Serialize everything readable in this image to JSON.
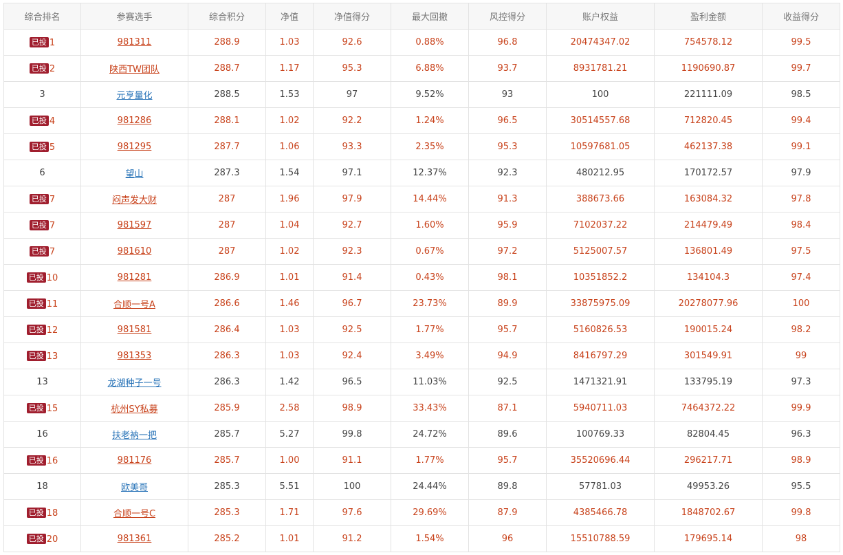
{
  "colors": {
    "invested": "#c8421b",
    "plain_text": "#444444",
    "plain_link": "#2a74b8",
    "badge_bg": "#a01e2e",
    "header_bg": "#f7f7f7"
  },
  "headers": [
    "综合排名",
    "参赛选手",
    "综合积分",
    "净值",
    "净值得分",
    "最大回撤",
    "风控得分",
    "账户权益",
    "盈利金额",
    "收益得分"
  ],
  "badge_text": "已投",
  "rows": [
    {
      "invested": true,
      "rank": "1",
      "name": "981311",
      "score": "288.9",
      "nav": "1.03",
      "nav_score": "92.6",
      "drawdown": "0.88%",
      "risk": "96.8",
      "equity": "20474347.02",
      "profit": "754578.12",
      "return": "99.5"
    },
    {
      "invested": true,
      "rank": "2",
      "name": "陕西TW团队",
      "score": "288.7",
      "nav": "1.17",
      "nav_score": "95.3",
      "drawdown": "6.88%",
      "risk": "93.7",
      "equity": "8931781.21",
      "profit": "1190690.87",
      "return": "99.7"
    },
    {
      "invested": false,
      "rank": "3",
      "name": "元亨量化",
      "score": "288.5",
      "nav": "1.53",
      "nav_score": "97",
      "drawdown": "9.52%",
      "risk": "93",
      "equity": "100",
      "profit": "221111.09",
      "return": "98.5"
    },
    {
      "invested": true,
      "rank": "4",
      "name": "981286",
      "score": "288.1",
      "nav": "1.02",
      "nav_score": "92.2",
      "drawdown": "1.24%",
      "risk": "96.5",
      "equity": "30514557.68",
      "profit": "712820.45",
      "return": "99.4"
    },
    {
      "invested": true,
      "rank": "5",
      "name": "981295",
      "score": "287.7",
      "nav": "1.06",
      "nav_score": "93.3",
      "drawdown": "2.35%",
      "risk": "95.3",
      "equity": "10597681.05",
      "profit": "462137.38",
      "return": "99.1"
    },
    {
      "invested": false,
      "rank": "6",
      "name": "望山",
      "score": "287.3",
      "nav": "1.54",
      "nav_score": "97.1",
      "drawdown": "12.37%",
      "risk": "92.3",
      "equity": "480212.95",
      "profit": "170172.57",
      "return": "97.9"
    },
    {
      "invested": true,
      "rank": "7",
      "name": "闷声发大财",
      "score": "287",
      "nav": "1.96",
      "nav_score": "97.9",
      "drawdown": "14.44%",
      "risk": "91.3",
      "equity": "388673.66",
      "profit": "163084.32",
      "return": "97.8"
    },
    {
      "invested": true,
      "rank": "7",
      "name": "981597",
      "score": "287",
      "nav": "1.04",
      "nav_score": "92.7",
      "drawdown": "1.60%",
      "risk": "95.9",
      "equity": "7102037.22",
      "profit": "214479.49",
      "return": "98.4"
    },
    {
      "invested": true,
      "rank": "7",
      "name": "981610",
      "score": "287",
      "nav": "1.02",
      "nav_score": "92.3",
      "drawdown": "0.67%",
      "risk": "97.2",
      "equity": "5125007.57",
      "profit": "136801.49",
      "return": "97.5"
    },
    {
      "invested": true,
      "rank": "10",
      "name": "981281",
      "score": "286.9",
      "nav": "1.01",
      "nav_score": "91.4",
      "drawdown": "0.43%",
      "risk": "98.1",
      "equity": "10351852.2",
      "profit": "134104.3",
      "return": "97.4"
    },
    {
      "invested": true,
      "rank": "11",
      "name": "合顺一号A",
      "score": "286.6",
      "nav": "1.46",
      "nav_score": "96.7",
      "drawdown": "23.73%",
      "risk": "89.9",
      "equity": "33875975.09",
      "profit": "20278077.96",
      "return": "100"
    },
    {
      "invested": true,
      "rank": "12",
      "name": "981581",
      "score": "286.4",
      "nav": "1.03",
      "nav_score": "92.5",
      "drawdown": "1.77%",
      "risk": "95.7",
      "equity": "5160826.53",
      "profit": "190015.24",
      "return": "98.2"
    },
    {
      "invested": true,
      "rank": "13",
      "name": "981353",
      "score": "286.3",
      "nav": "1.03",
      "nav_score": "92.4",
      "drawdown": "3.49%",
      "risk": "94.9",
      "equity": "8416797.29",
      "profit": "301549.91",
      "return": "99"
    },
    {
      "invested": false,
      "rank": "13",
      "name": "龙湖种子一号",
      "score": "286.3",
      "nav": "1.42",
      "nav_score": "96.5",
      "drawdown": "11.03%",
      "risk": "92.5",
      "equity": "1471321.91",
      "profit": "133795.19",
      "return": "97.3"
    },
    {
      "invested": true,
      "rank": "15",
      "name": "杭州SY私募",
      "score": "285.9",
      "nav": "2.58",
      "nav_score": "98.9",
      "drawdown": "33.43%",
      "risk": "87.1",
      "equity": "5940711.03",
      "profit": "7464372.22",
      "return": "99.9"
    },
    {
      "invested": false,
      "rank": "16",
      "name": "扶老衲一把",
      "score": "285.7",
      "nav": "5.27",
      "nav_score": "99.8",
      "drawdown": "24.72%",
      "risk": "89.6",
      "equity": "100769.33",
      "profit": "82804.45",
      "return": "96.3"
    },
    {
      "invested": true,
      "rank": "16",
      "name": "981176",
      "score": "285.7",
      "nav": "1.00",
      "nav_score": "91.1",
      "drawdown": "1.77%",
      "risk": "95.7",
      "equity": "35520696.44",
      "profit": "296217.71",
      "return": "98.9"
    },
    {
      "invested": false,
      "rank": "18",
      "name": "欧美哥",
      "score": "285.3",
      "nav": "5.51",
      "nav_score": "100",
      "drawdown": "24.44%",
      "risk": "89.8",
      "equity": "57781.03",
      "profit": "49953.26",
      "return": "95.5"
    },
    {
      "invested": true,
      "rank": "18",
      "name": "合顺一号C",
      "score": "285.3",
      "nav": "1.71",
      "nav_score": "97.6",
      "drawdown": "29.69%",
      "risk": "87.9",
      "equity": "4385466.78",
      "profit": "1848702.67",
      "return": "99.8"
    },
    {
      "invested": true,
      "rank": "20",
      "name": "981361",
      "score": "285.2",
      "nav": "1.01",
      "nav_score": "91.2",
      "drawdown": "1.54%",
      "risk": "96",
      "equity": "15510788.59",
      "profit": "179695.14",
      "return": "98"
    }
  ]
}
